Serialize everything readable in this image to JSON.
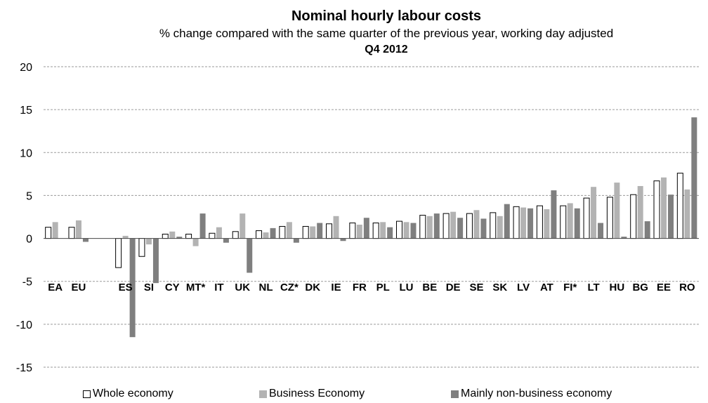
{
  "chart_data": {
    "type": "bar",
    "title": "Nominal hourly labour costs",
    "subtitle": "% change compared with the same quarter of the previous year, working day adjusted",
    "period": "Q4 2012",
    "ylim": [
      -15,
      20
    ],
    "yticks": [
      20,
      15,
      10,
      5,
      0,
      -5,
      -10,
      -15
    ],
    "grid": true,
    "legend_position": "bottom",
    "categories": [
      "EA",
      "EU",
      "",
      "ES",
      "SI",
      "CY",
      "MT*",
      "IT",
      "UK",
      "NL",
      "CZ*",
      "DK",
      "IE",
      "FR",
      "PL",
      "LU",
      "BE",
      "DE",
      "SE",
      "SK",
      "LV",
      "AT",
      "FI*",
      "LT",
      "HU",
      "BG",
      "EE",
      "RO"
    ],
    "series": [
      {
        "name": "Whole economy",
        "color": "#ffffff",
        "values": [
          1.3,
          1.3,
          null,
          -3.4,
          -2.1,
          0.5,
          0.5,
          0.6,
          0.8,
          0.9,
          1.4,
          1.4,
          1.7,
          1.8,
          1.8,
          2.0,
          2.7,
          2.9,
          2.9,
          3.0,
          3.7,
          3.8,
          3.8,
          4.7,
          4.8,
          5.1,
          6.7,
          7.6
        ]
      },
      {
        "name": "Business Economy",
        "color": "#b3b3b3",
        "values": [
          1.9,
          2.1,
          null,
          0.3,
          -0.7,
          0.8,
          -0.9,
          1.3,
          2.9,
          0.7,
          1.9,
          1.4,
          2.6,
          1.6,
          1.9,
          1.9,
          2.6,
          3.1,
          3.3,
          2.6,
          3.6,
          3.4,
          4.1,
          6.0,
          6.5,
          6.1,
          7.1,
          5.7
        ]
      },
      {
        "name": "Mainly non-business economy",
        "color": "#7f7f7f",
        "values": [
          null,
          -0.4,
          null,
          -11.5,
          -5.2,
          0.2,
          2.9,
          -0.5,
          -4.0,
          1.2,
          -0.5,
          1.8,
          -0.3,
          2.4,
          1.3,
          1.8,
          2.9,
          2.4,
          2.3,
          4.0,
          3.5,
          5.6,
          3.5,
          1.8,
          0.2,
          2.0,
          5.1,
          14.1
        ]
      }
    ]
  }
}
